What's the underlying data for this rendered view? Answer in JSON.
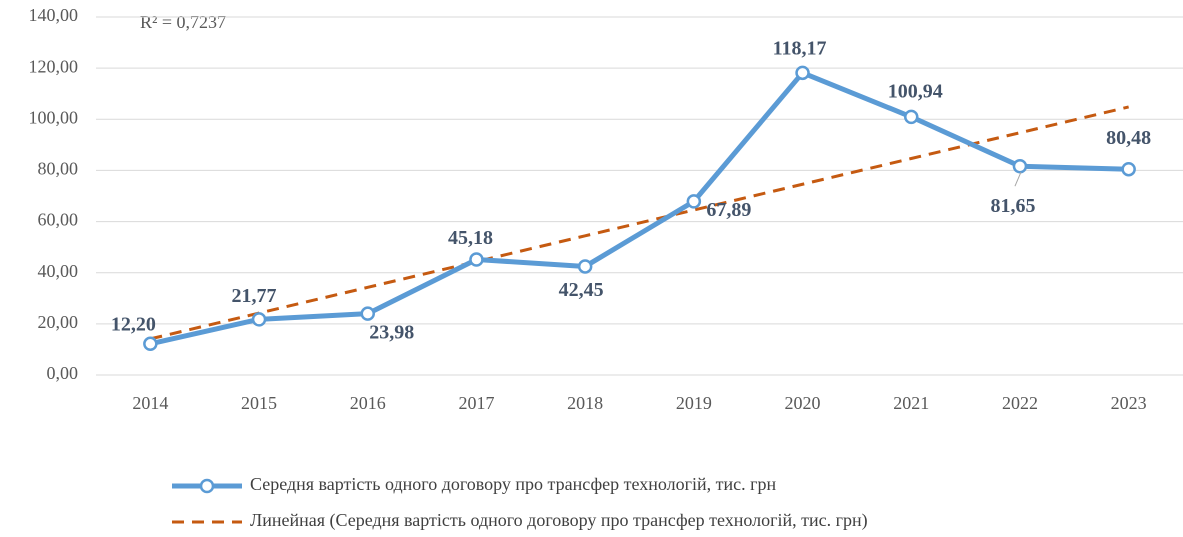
{
  "chart_data": {
    "type": "line",
    "categories": [
      "2014",
      "2015",
      "2016",
      "2017",
      "2018",
      "2019",
      "2020",
      "2021",
      "2022",
      "2023"
    ],
    "series": [
      {
        "name": "Середня вартість одного договору про трансфер технологій, тис. грн",
        "color": "#5b9bd5",
        "values": [
          12.2,
          21.77,
          23.98,
          45.18,
          42.45,
          67.89,
          118.17,
          100.94,
          81.65,
          80.48
        ],
        "value_labels": [
          "12,20",
          "21,77",
          "23,98",
          "45,18",
          "42,45",
          "67,89",
          "118,17",
          "100,94",
          "81,65",
          "80,48"
        ]
      },
      {
        "name": "Линейная (Середня вартість одного договору про трансфер технологій, тис. грн)",
        "color": "#c55a11",
        "dashed": true,
        "values": [
          14.12,
          24.2,
          34.28,
          44.35,
          54.43,
          64.51,
          74.59,
          84.67,
          94.74,
          104.82
        ]
      }
    ],
    "annotations": [
      "R² = 0,7237"
    ],
    "ylim": [
      0,
      140
    ],
    "yticks": [
      {
        "value": 0,
        "label": "0,00"
      },
      {
        "value": 20,
        "label": "20,00"
      },
      {
        "value": 40,
        "label": "40,00"
      },
      {
        "value": 60,
        "label": "60,00"
      },
      {
        "value": 80,
        "label": "80,00"
      },
      {
        "value": 100,
        "label": "100,00"
      },
      {
        "value": 120,
        "label": "120,00"
      },
      {
        "value": 140,
        "label": "140,00"
      }
    ],
    "grid": true
  }
}
